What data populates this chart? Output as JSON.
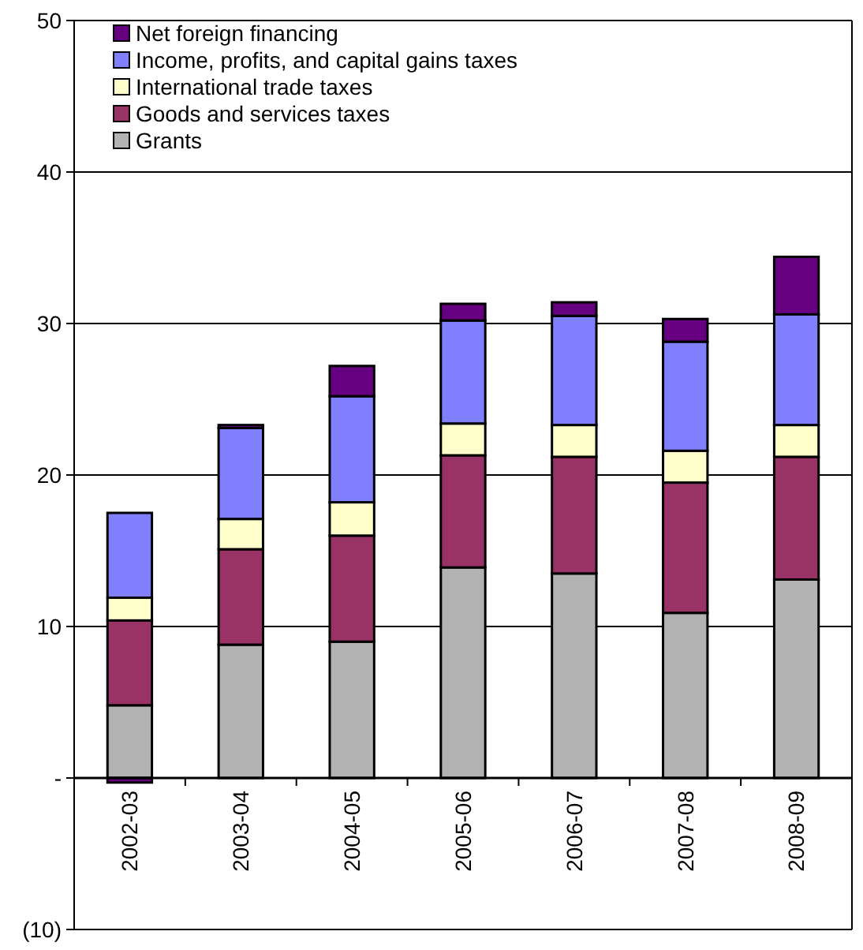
{
  "chart_data": {
    "type": "bar",
    "stacked": true,
    "categories": [
      "2002-03",
      "2003-04",
      "2004-05",
      "2005-06",
      "2006-07",
      "2007-08",
      "2008-09"
    ],
    "series": [
      {
        "name": "Grants",
        "color": "#b2b2b2",
        "values": [
          4.8,
          8.8,
          9.0,
          13.9,
          13.5,
          10.9,
          13.1
        ]
      },
      {
        "name": "Goods and services taxes",
        "color": "#993366",
        "values": [
          5.6,
          6.3,
          7.0,
          7.4,
          7.7,
          8.6,
          8.1
        ]
      },
      {
        "name": "International trade taxes",
        "color": "#ffffcc",
        "values": [
          1.5,
          2.0,
          2.2,
          2.1,
          2.1,
          2.1,
          2.1
        ]
      },
      {
        "name": "Income, profits, and capital gains taxes",
        "color": "#8080ff",
        "values": [
          5.6,
          6.0,
          7.0,
          6.8,
          7.2,
          7.2,
          7.3
        ]
      },
      {
        "name": "Net foreign financing",
        "color": "#660080",
        "values": [
          -0.3,
          0.2,
          2.0,
          1.1,
          0.9,
          1.5,
          3.8
        ]
      }
    ],
    "ylim": [
      -10,
      50
    ],
    "yticks": [
      {
        "value": -10,
        "label": "(10)"
      },
      {
        "value": 0,
        "label": "-"
      },
      10,
      20,
      30,
      40,
      50
    ],
    "grid": "y",
    "legend": "top left"
  }
}
